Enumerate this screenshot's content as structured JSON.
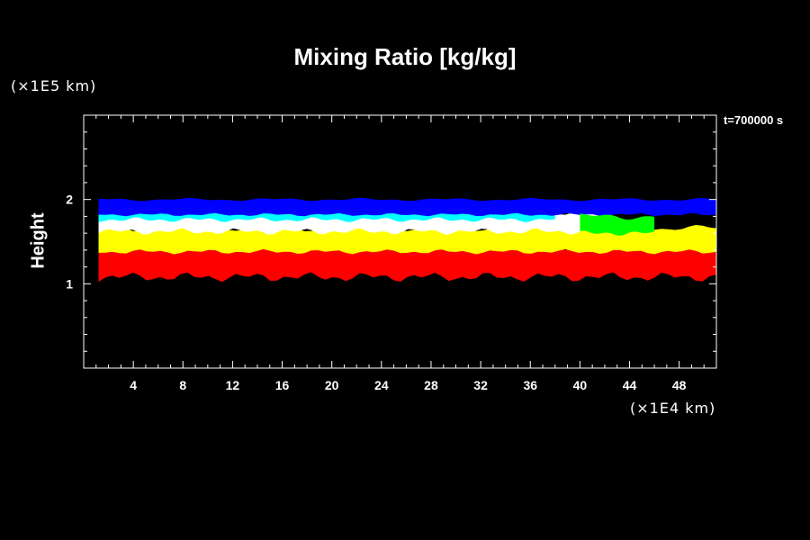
{
  "chart_data": {
    "type": "heatmap",
    "title": "Mixing Ratio [kg/kg]",
    "xlabel": "",
    "ylabel": "Height",
    "x_unit": "(×1E4 km)",
    "y_unit": "(×1E5 km)",
    "annotation": "t=700000 s",
    "xlim": [
      0,
      51
    ],
    "ylim": [
      0,
      3
    ],
    "x_ticks": [
      4,
      8,
      12,
      16,
      20,
      24,
      28,
      32,
      36,
      40,
      44,
      48
    ],
    "y_ticks": [
      1,
      2
    ],
    "grid": false,
    "bands": [
      {
        "level": "lowest",
        "color": "#ff0000",
        "y_range": [
          1.05,
          1.4
        ]
      },
      {
        "level": "low",
        "color": "#ffff00",
        "y_range": [
          1.4,
          1.65
        ]
      },
      {
        "level": "mid",
        "color": "#ffffff",
        "y_range": [
          1.65,
          1.85
        ]
      },
      {
        "level": "high",
        "color": "#00ffff",
        "y_range": [
          1.78,
          1.9
        ]
      },
      {
        "level": "highest",
        "color": "#0000ff",
        "y_range": [
          1.85,
          2.0
        ]
      },
      {
        "level": "local",
        "color": "#00ff00",
        "y_range": [
          1.6,
          1.8
        ]
      }
    ]
  }
}
